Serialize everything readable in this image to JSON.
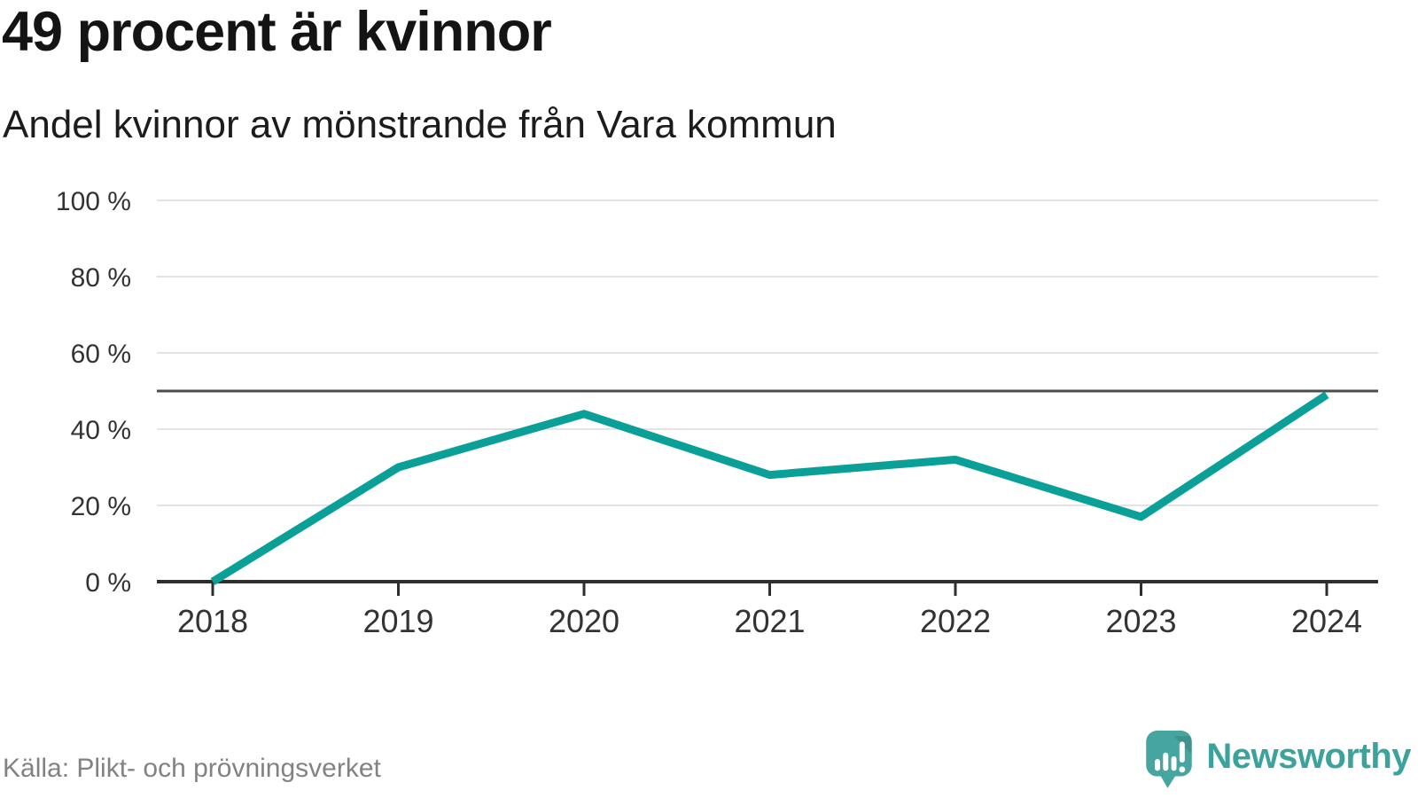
{
  "page": {
    "title": "49 procent är kvinnor",
    "subtitle": "Andel kvinnor av mönstrande från Vara kommun"
  },
  "footer": {
    "source": "Källa: Plikt- och prövningsverket",
    "brand": "Newsworthy"
  },
  "colors": {
    "line": "#0aa098",
    "grid": "#e3e3e3",
    "axis": "#2e2e2e",
    "reference_line": "#4d4d4d",
    "tick_label": "#333333",
    "brand_teal": "#46a59e",
    "source_gray": "#828282"
  },
  "chart_data": {
    "type": "line",
    "title": "49 procent är kvinnor",
    "subtitle": "Andel kvinnor av mönstrande från Vara kommun",
    "x": [
      "2018",
      "2019",
      "2020",
      "2021",
      "2022",
      "2023",
      "2024"
    ],
    "series": [
      {
        "name": "Andel kvinnor av mönstrande",
        "values": [
          0,
          30,
          44,
          28,
          32,
          17,
          49
        ]
      }
    ],
    "unit": "%",
    "ylim": [
      0,
      100
    ],
    "y_ticks": [
      0,
      20,
      40,
      60,
      80,
      100
    ],
    "y_tick_format": "{v} %",
    "reference_line": 50,
    "grid": true,
    "legend": "none",
    "source": "Källa: Plikt- och prövningsverket"
  }
}
